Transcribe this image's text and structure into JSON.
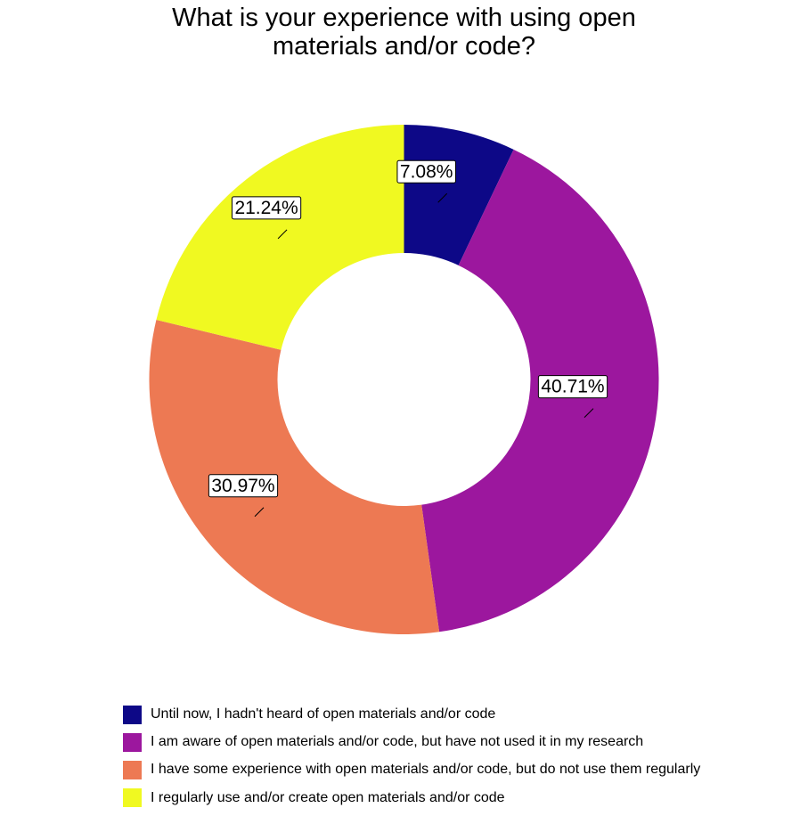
{
  "chart_data": {
    "type": "pie",
    "donut": true,
    "title": "What is your experience with using open materials and/or code?",
    "title_lines": [
      "What is your experience with using open",
      "materials and/or code?"
    ],
    "legend_position": "bottom",
    "categories": [
      "Until now, I hadn't heard of open materials and/or code",
      "I am aware of open materials and/or code, but have not used it in my research",
      "I have some experience with open materials and/or code, but do not use them regularly",
      "I regularly use and/or create open materials and/or code"
    ],
    "values": [
      7.08,
      40.71,
      30.97,
      21.24
    ],
    "labels": [
      "7.08%",
      "40.71%",
      "30.97%",
      "21.24%"
    ],
    "colors": [
      "#0d0887",
      "#9c179e",
      "#ed7953",
      "#f0f921"
    ]
  }
}
